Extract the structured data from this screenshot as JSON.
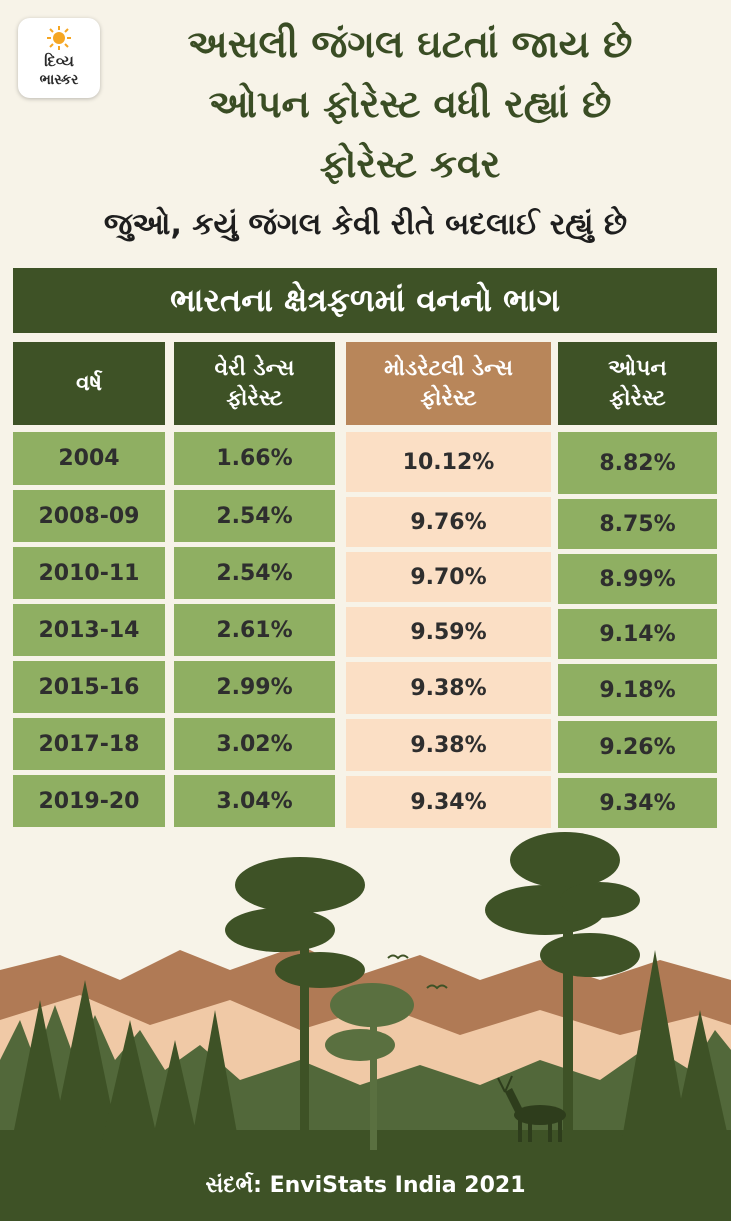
{
  "logo": {
    "line1": "દિવ્ય",
    "line2": "ભાસ્કર"
  },
  "headline": [
    "અસલી જંગલ ઘટતાં જાય છે",
    "ઓપન ફોરેસ્ટ વધી રહ્યાં છે",
    "ફોરેસ્ટ કવર"
  ],
  "subtitle": "જુઓ, કયું જંગલ કેવી રીતે બદલાઈ રહ્યું છે",
  "banner": "ભારતના ક્ષેત્રફળમાં વનનો ભાગ",
  "table": {
    "headers": [
      {
        "line1": "વર્ષ",
        "line2": ""
      },
      {
        "line1": "વેરી ડેન્સ",
        "line2": "ફોરેસ્ટ"
      },
      {
        "line1": "મોડરેટલી ડેન્સ",
        "line2": "ફોરેસ્ટ"
      },
      {
        "line1": "ઓપન",
        "line2": "ફોરેસ્ટ"
      }
    ],
    "rows": [
      {
        "year": "2004",
        "very_dense": "1.66%",
        "moderately_dense": "10.12%",
        "open": "8.82%"
      },
      {
        "year": "2008-09",
        "very_dense": "2.54%",
        "moderately_dense": "9.76%",
        "open": "8.75%"
      },
      {
        "year": "2010-11",
        "very_dense": "2.54%",
        "moderately_dense": "9.70%",
        "open": "8.99%"
      },
      {
        "year": "2013-14",
        "very_dense": "2.61%",
        "moderately_dense": "9.59%",
        "open": "9.14%"
      },
      {
        "year": "2015-16",
        "very_dense": "2.99%",
        "moderately_dense": "9.38%",
        "open": "9.18%"
      },
      {
        "year": "2017-18",
        "very_dense": "3.02%",
        "moderately_dense": "9.38%",
        "open": "9.26%"
      },
      {
        "year": "2019-20",
        "very_dense": "3.04%",
        "moderately_dense": "9.34%",
        "open": "9.34%"
      }
    ]
  },
  "source": "સંદર્ભ: EnviStats India 2021",
  "colors": {
    "background": "#f7f3e8",
    "dark_green": "#3e5226",
    "light_green": "#8faf62",
    "brown_header": "#b8865a",
    "peach": "#fbdfc5",
    "mountain": "#b07a55"
  }
}
